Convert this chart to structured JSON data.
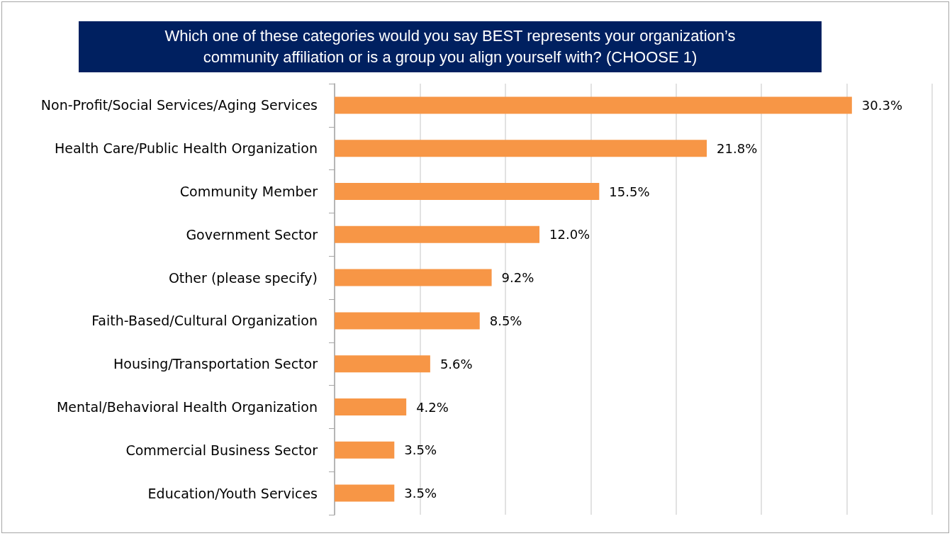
{
  "chart_data": {
    "type": "bar",
    "orientation": "horizontal",
    "title": "Which one of these categories would you say BEST represents your organization’s\ncommunity affiliation or is a group you align yourself with? (CHOOSE 1)",
    "categories": [
      "Non-Profit/Social Services/Aging Services",
      "Health Care/Public Health Organization",
      "Community Member",
      "Government Sector",
      "Other (please specify)",
      "Faith-Based/Cultural Organization",
      "Housing/Transportation Sector",
      "Mental/Behavioral Health Organization",
      "Commercial Business Sector",
      "Education/Youth Services"
    ],
    "values": [
      30.3,
      21.8,
      15.5,
      12.0,
      9.2,
      8.5,
      5.6,
      4.2,
      3.5,
      3.5
    ],
    "value_labels": [
      "30.3%",
      "21.8%",
      "15.5%",
      "12.0%",
      "9.2%",
      "8.5%",
      "5.6%",
      "4.2%",
      "3.5%",
      "3.5%"
    ],
    "color": "#f79646",
    "xlim": [
      0,
      35
    ],
    "xticks": [
      {
        "value": 0,
        "label": null
      },
      {
        "value": 5,
        "label": null
      },
      {
        "value": 10,
        "label": null
      },
      {
        "value": 15,
        "label": null
      },
      {
        "value": 20,
        "label": null
      },
      {
        "value": 25,
        "label": null
      },
      {
        "value": 30,
        "label": null
      },
      {
        "value": 35,
        "label": null
      }
    ],
    "grid": "x",
    "tick_labels": "y"
  }
}
